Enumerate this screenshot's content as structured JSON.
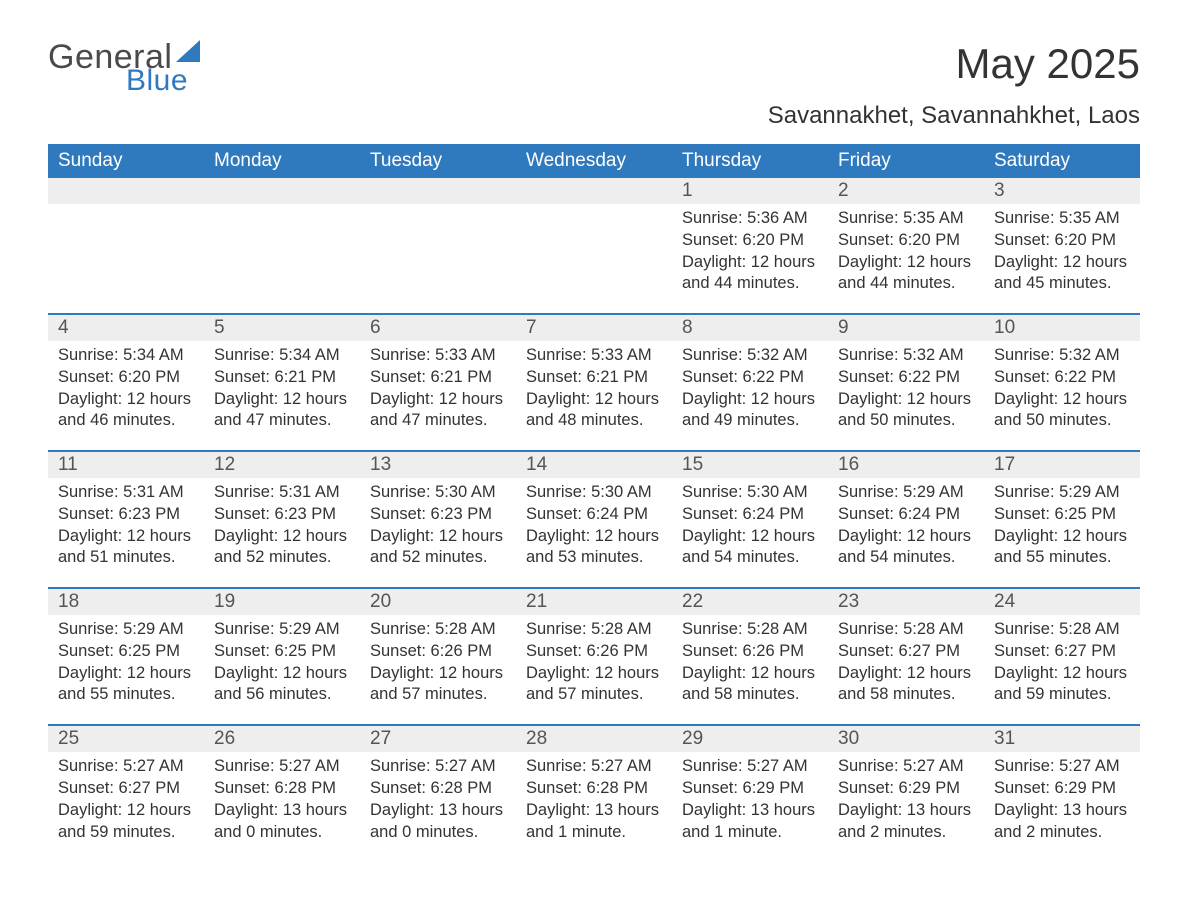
{
  "brand": {
    "word1": "General",
    "word2": "Blue",
    "logo_color": "#2f79bf",
    "text_color": "#4a4a4a"
  },
  "title": "May 2025",
  "subtitle": "Savannakhet, Savannahkhet, Laos",
  "colors": {
    "header_bg": "#2f79bf",
    "header_text": "#ffffff",
    "daynum_bg": "#eeeeee",
    "page_bg": "#ffffff",
    "body_text": "#333333",
    "week_divider": "#2f79bf"
  },
  "dows": [
    "Sunday",
    "Monday",
    "Tuesday",
    "Wednesday",
    "Thursday",
    "Friday",
    "Saturday"
  ],
  "weeks": [
    {
      "days": [
        {
          "num": "",
          "sunrise": "",
          "sunset": "",
          "daylight": ""
        },
        {
          "num": "",
          "sunrise": "",
          "sunset": "",
          "daylight": ""
        },
        {
          "num": "",
          "sunrise": "",
          "sunset": "",
          "daylight": ""
        },
        {
          "num": "",
          "sunrise": "",
          "sunset": "",
          "daylight": ""
        },
        {
          "num": "1",
          "sunrise": "Sunrise: 5:36 AM",
          "sunset": "Sunset: 6:20 PM",
          "daylight": "Daylight: 12 hours and 44 minutes."
        },
        {
          "num": "2",
          "sunrise": "Sunrise: 5:35 AM",
          "sunset": "Sunset: 6:20 PM",
          "daylight": "Daylight: 12 hours and 44 minutes."
        },
        {
          "num": "3",
          "sunrise": "Sunrise: 5:35 AM",
          "sunset": "Sunset: 6:20 PM",
          "daylight": "Daylight: 12 hours and 45 minutes."
        }
      ]
    },
    {
      "days": [
        {
          "num": "4",
          "sunrise": "Sunrise: 5:34 AM",
          "sunset": "Sunset: 6:20 PM",
          "daylight": "Daylight: 12 hours and 46 minutes."
        },
        {
          "num": "5",
          "sunrise": "Sunrise: 5:34 AM",
          "sunset": "Sunset: 6:21 PM",
          "daylight": "Daylight: 12 hours and 47 minutes."
        },
        {
          "num": "6",
          "sunrise": "Sunrise: 5:33 AM",
          "sunset": "Sunset: 6:21 PM",
          "daylight": "Daylight: 12 hours and 47 minutes."
        },
        {
          "num": "7",
          "sunrise": "Sunrise: 5:33 AM",
          "sunset": "Sunset: 6:21 PM",
          "daylight": "Daylight: 12 hours and 48 minutes."
        },
        {
          "num": "8",
          "sunrise": "Sunrise: 5:32 AM",
          "sunset": "Sunset: 6:22 PM",
          "daylight": "Daylight: 12 hours and 49 minutes."
        },
        {
          "num": "9",
          "sunrise": "Sunrise: 5:32 AM",
          "sunset": "Sunset: 6:22 PM",
          "daylight": "Daylight: 12 hours and 50 minutes."
        },
        {
          "num": "10",
          "sunrise": "Sunrise: 5:32 AM",
          "sunset": "Sunset: 6:22 PM",
          "daylight": "Daylight: 12 hours and 50 minutes."
        }
      ]
    },
    {
      "days": [
        {
          "num": "11",
          "sunrise": "Sunrise: 5:31 AM",
          "sunset": "Sunset: 6:23 PM",
          "daylight": "Daylight: 12 hours and 51 minutes."
        },
        {
          "num": "12",
          "sunrise": "Sunrise: 5:31 AM",
          "sunset": "Sunset: 6:23 PM",
          "daylight": "Daylight: 12 hours and 52 minutes."
        },
        {
          "num": "13",
          "sunrise": "Sunrise: 5:30 AM",
          "sunset": "Sunset: 6:23 PM",
          "daylight": "Daylight: 12 hours and 52 minutes."
        },
        {
          "num": "14",
          "sunrise": "Sunrise: 5:30 AM",
          "sunset": "Sunset: 6:24 PM",
          "daylight": "Daylight: 12 hours and 53 minutes."
        },
        {
          "num": "15",
          "sunrise": "Sunrise: 5:30 AM",
          "sunset": "Sunset: 6:24 PM",
          "daylight": "Daylight: 12 hours and 54 minutes."
        },
        {
          "num": "16",
          "sunrise": "Sunrise: 5:29 AM",
          "sunset": "Sunset: 6:24 PM",
          "daylight": "Daylight: 12 hours and 54 minutes."
        },
        {
          "num": "17",
          "sunrise": "Sunrise: 5:29 AM",
          "sunset": "Sunset: 6:25 PM",
          "daylight": "Daylight: 12 hours and 55 minutes."
        }
      ]
    },
    {
      "days": [
        {
          "num": "18",
          "sunrise": "Sunrise: 5:29 AM",
          "sunset": "Sunset: 6:25 PM",
          "daylight": "Daylight: 12 hours and 55 minutes."
        },
        {
          "num": "19",
          "sunrise": "Sunrise: 5:29 AM",
          "sunset": "Sunset: 6:25 PM",
          "daylight": "Daylight: 12 hours and 56 minutes."
        },
        {
          "num": "20",
          "sunrise": "Sunrise: 5:28 AM",
          "sunset": "Sunset: 6:26 PM",
          "daylight": "Daylight: 12 hours and 57 minutes."
        },
        {
          "num": "21",
          "sunrise": "Sunrise: 5:28 AM",
          "sunset": "Sunset: 6:26 PM",
          "daylight": "Daylight: 12 hours and 57 minutes."
        },
        {
          "num": "22",
          "sunrise": "Sunrise: 5:28 AM",
          "sunset": "Sunset: 6:26 PM",
          "daylight": "Daylight: 12 hours and 58 minutes."
        },
        {
          "num": "23",
          "sunrise": "Sunrise: 5:28 AM",
          "sunset": "Sunset: 6:27 PM",
          "daylight": "Daylight: 12 hours and 58 minutes."
        },
        {
          "num": "24",
          "sunrise": "Sunrise: 5:28 AM",
          "sunset": "Sunset: 6:27 PM",
          "daylight": "Daylight: 12 hours and 59 minutes."
        }
      ]
    },
    {
      "days": [
        {
          "num": "25",
          "sunrise": "Sunrise: 5:27 AM",
          "sunset": "Sunset: 6:27 PM",
          "daylight": "Daylight: 12 hours and 59 minutes."
        },
        {
          "num": "26",
          "sunrise": "Sunrise: 5:27 AM",
          "sunset": "Sunset: 6:28 PM",
          "daylight": "Daylight: 13 hours and 0 minutes."
        },
        {
          "num": "27",
          "sunrise": "Sunrise: 5:27 AM",
          "sunset": "Sunset: 6:28 PM",
          "daylight": "Daylight: 13 hours and 0 minutes."
        },
        {
          "num": "28",
          "sunrise": "Sunrise: 5:27 AM",
          "sunset": "Sunset: 6:28 PM",
          "daylight": "Daylight: 13 hours and 1 minute."
        },
        {
          "num": "29",
          "sunrise": "Sunrise: 5:27 AM",
          "sunset": "Sunset: 6:29 PM",
          "daylight": "Daylight: 13 hours and 1 minute."
        },
        {
          "num": "30",
          "sunrise": "Sunrise: 5:27 AM",
          "sunset": "Sunset: 6:29 PM",
          "daylight": "Daylight: 13 hours and 2 minutes."
        },
        {
          "num": "31",
          "sunrise": "Sunrise: 5:27 AM",
          "sunset": "Sunset: 6:29 PM",
          "daylight": "Daylight: 13 hours and 2 minutes."
        }
      ]
    }
  ]
}
